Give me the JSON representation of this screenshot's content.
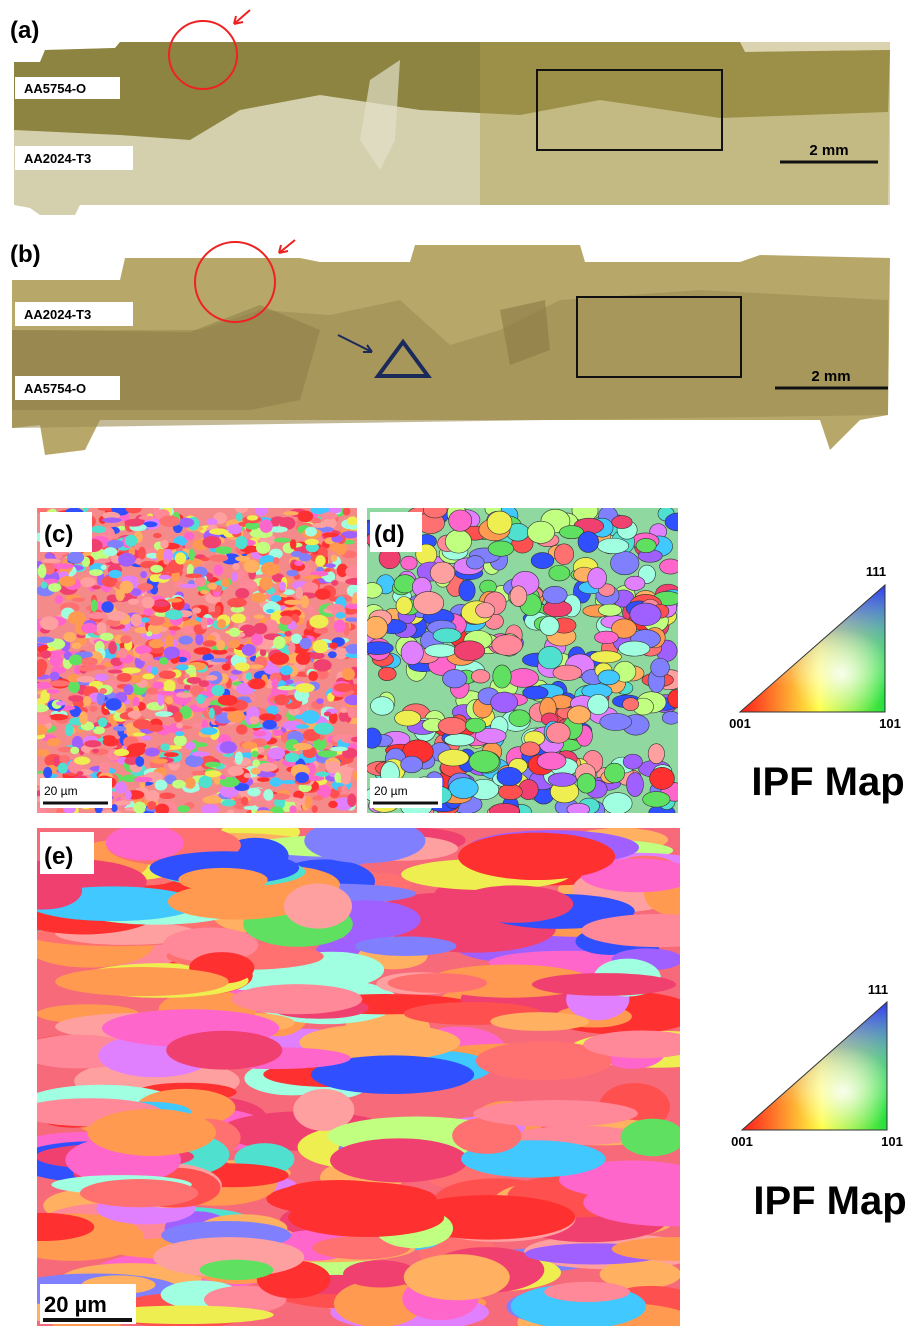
{
  "panels": [
    {
      "label": "(a)",
      "materials": [
        "AA5754-O",
        "AA2024-T3"
      ],
      "scale_bar": "2 mm"
    },
    {
      "label": "(b)",
      "materials": [
        "AA2024-T3",
        "AA5754-O"
      ],
      "scale_bar": "2 mm"
    },
    {
      "label": "(c)",
      "scale_bar": "20 µm"
    },
    {
      "label": "(d)",
      "scale_bar": "20 µm"
    },
    {
      "label": "(e)",
      "scale_bar": "20 µm"
    }
  ],
  "ipf_legends": [
    {
      "corners": [
        "111",
        "001",
        "101"
      ],
      "title": "IPF Map"
    },
    {
      "corners": [
        "111",
        "001",
        "101"
      ],
      "title": "IPF Map"
    }
  ]
}
